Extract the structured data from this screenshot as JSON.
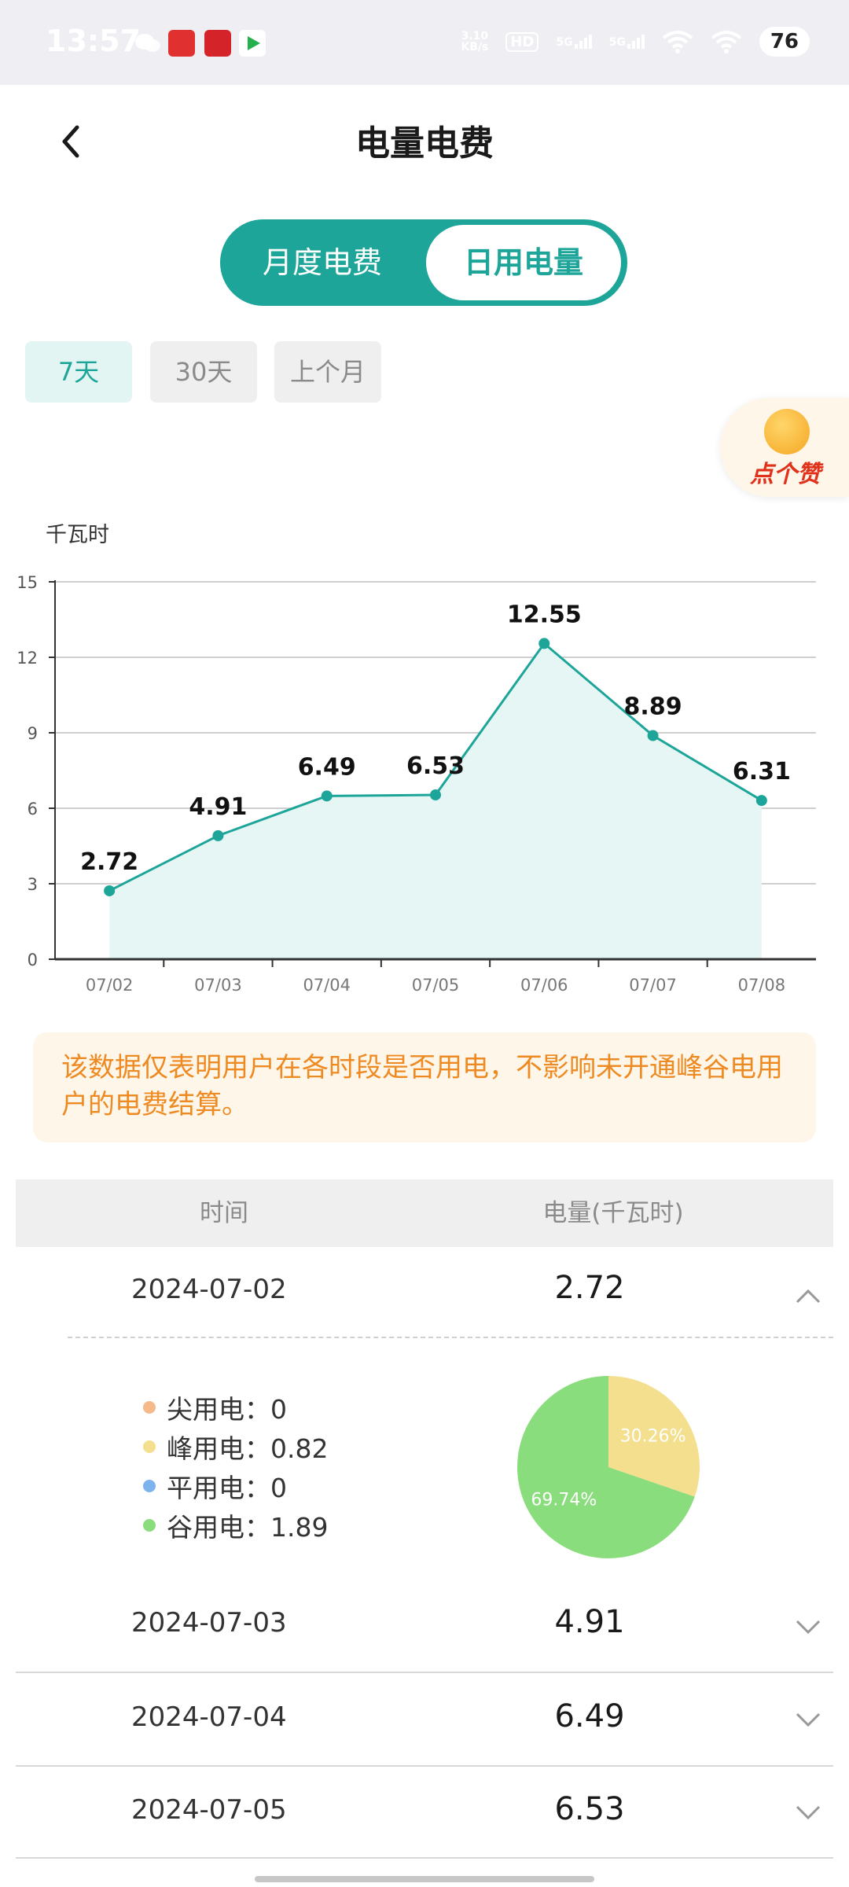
{
  "status_bar": {
    "time": "13:57",
    "net_speed": "3.10\nKB/s",
    "hd": "HD",
    "signal1": "5G",
    "signal2": "5G",
    "battery": "76"
  },
  "header": {
    "title": "电量电费"
  },
  "toggle": {
    "monthly": "月度电费",
    "daily": "日用电量",
    "selected": "日用电量"
  },
  "ranges": {
    "items": [
      "7天",
      "30天",
      "上个月"
    ],
    "selected": "7天"
  },
  "like_badge": {
    "label": "点个赞"
  },
  "chart_data": {
    "type": "area",
    "ylabel": "千瓦时",
    "categories": [
      "07/02",
      "07/03",
      "07/04",
      "07/05",
      "07/06",
      "07/07",
      "07/08"
    ],
    "values": [
      2.72,
      4.91,
      6.49,
      6.53,
      12.55,
      8.89,
      6.31
    ],
    "data_labels": [
      "2.72",
      "4.91",
      "6.49",
      "6.53",
      "12.55",
      "8.89",
      "6.31"
    ],
    "y_ticks": [
      "0",
      "3",
      "6",
      "9",
      "12",
      "15"
    ],
    "ylim": [
      0,
      15
    ],
    "grid": true,
    "colors": {
      "line": "#1ca598",
      "fill": "#e6f6f5",
      "grid": "#cfcfcf"
    }
  },
  "notice": {
    "text": "该数据仅表明用户在各时段是否用电，不影响未开通峰谷电用户的电费结算。"
  },
  "table": {
    "header_time": "时间",
    "header_amount": "电量(千瓦时)",
    "rows": [
      {
        "date": "2024-07-02",
        "value": "2.72",
        "expanded": true
      },
      {
        "date": "2024-07-03",
        "value": "4.91",
        "expanded": false
      },
      {
        "date": "2024-07-04",
        "value": "6.49",
        "expanded": false
      },
      {
        "date": "2024-07-05",
        "value": "6.53",
        "expanded": false
      }
    ],
    "detail": {
      "legend": [
        {
          "label": "尖用电：0",
          "color": "#f5b98a"
        },
        {
          "label": "峰用电：0.82",
          "color": "#f3df8e"
        },
        {
          "label": "平用电：0",
          "color": "#7fb3ee"
        },
        {
          "label": "谷用电：1.89",
          "color": "#8add7c"
        }
      ],
      "pie": {
        "slices": [
          {
            "name": "峰用电",
            "percent": 30.26,
            "label": "30.26%",
            "color": "#f3df8e"
          },
          {
            "name": "谷用电",
            "percent": 69.74,
            "label": "69.74%",
            "color": "#8add7c"
          }
        ]
      }
    }
  }
}
